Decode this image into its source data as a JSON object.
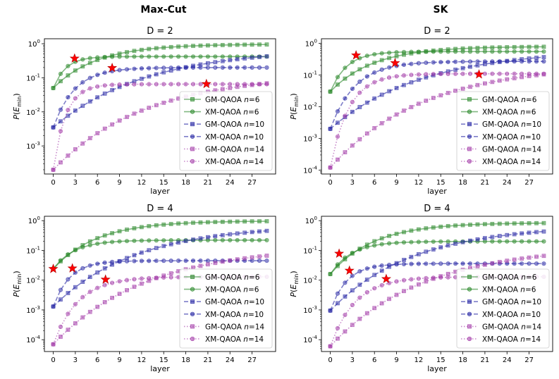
{
  "figure": {
    "column_titles": [
      "Max-Cut",
      "SK"
    ]
  },
  "styles": {
    "series": [
      {
        "name": "GM-QAOA n=6",
        "color": "#2e8b2e",
        "dash": "solid",
        "marker": "square"
      },
      {
        "name": "XM-QAOA n=6",
        "color": "#2e8b2e",
        "dash": "solid",
        "marker": "circle"
      },
      {
        "name": "GM-QAOA n=10",
        "color": "#2a2aa5",
        "dash": "dashed",
        "marker": "square"
      },
      {
        "name": "XM-QAOA n=10",
        "color": "#2a2aa5",
        "dash": "dashed",
        "marker": "circle"
      },
      {
        "name": "GM-QAOA n=14",
        "color": "#a33aa8",
        "dash": "dotted",
        "marker": "square"
      },
      {
        "name": "XM-QAOA n=14",
        "color": "#a33aa8",
        "dash": "dotted",
        "marker": "circle"
      }
    ],
    "star_color": "#ff0000"
  },
  "chart_data": [
    {
      "type": "line",
      "problem": "Max-Cut",
      "title": "D = 2",
      "xlabel": "layer",
      "ylabel": "P(E_min)",
      "yscale": "log",
      "ylim": [
        0.00015,
        1.4
      ],
      "xlim": [
        -1.2,
        30.2
      ],
      "xticks": [
        "0",
        "3",
        "6",
        "9",
        "12",
        "15",
        "18",
        "21",
        "24",
        "27"
      ],
      "yticks": [
        "10^-3",
        "10^-2",
        "10^-1",
        "10^0"
      ],
      "legend": "lower-right",
      "grid": false,
      "series": [
        {
          "name": "GM-QAOA n=6",
          "start": 0.05,
          "end": 0.97,
          "rate": 0.17
        },
        {
          "name": "XM-QAOA n=6",
          "start": 0.05,
          "end": 0.42,
          "rate": 0.6
        },
        {
          "name": "GM-QAOA n=10",
          "start": 0.0035,
          "end": 0.72,
          "rate": 0.08
        },
        {
          "name": "XM-QAOA n=10",
          "start": 0.0035,
          "end": 0.2,
          "rate": 0.35
        },
        {
          "name": "GM-QAOA n=14",
          "start": 0.0002,
          "end": 0.13,
          "rate": 0.08
        },
        {
          "name": "XM-QAOA n=14",
          "start": 0.0002,
          "end": 0.065,
          "rate": 0.6
        }
      ],
      "stars": [
        {
          "x": 2.9,
          "y": 0.37
        },
        {
          "x": 8.0,
          "y": 0.195
        },
        {
          "x": 20.8,
          "y": 0.066
        }
      ]
    },
    {
      "type": "line",
      "problem": "SK",
      "title": "D = 2",
      "xlabel": "layer",
      "ylabel": "P(E_min)",
      "yscale": "log",
      "ylim": [
        7.5e-05,
        1.4
      ],
      "xlim": [
        -1.2,
        30.2
      ],
      "xticks": [
        "0",
        "3",
        "6",
        "9",
        "12",
        "15",
        "18",
        "21",
        "24",
        "27"
      ],
      "yticks": [
        "10^-4",
        "10^-3",
        "10^-2",
        "10^-1",
        "10^0"
      ],
      "legend": "lower-right",
      "grid": false,
      "series": [
        {
          "name": "GM-QAOA n=6",
          "start": 0.03,
          "end": 0.8,
          "rate": 0.17
        },
        {
          "name": "XM-QAOA n=6",
          "start": 0.03,
          "end": 0.55,
          "rate": 0.45
        },
        {
          "name": "GM-QAOA n=10",
          "start": 0.002,
          "end": 0.65,
          "rate": 0.08
        },
        {
          "name": "XM-QAOA n=10",
          "start": 0.002,
          "end": 0.27,
          "rate": 0.3
        },
        {
          "name": "GM-QAOA n=14",
          "start": 0.00012,
          "end": 0.22,
          "rate": 0.08
        },
        {
          "name": "XM-QAOA n=14",
          "start": 0.00012,
          "end": 0.11,
          "rate": 0.4
        }
      ],
      "stars": [
        {
          "x": 3.5,
          "y": 0.42
        },
        {
          "x": 8.8,
          "y": 0.24
        },
        {
          "x": 20.2,
          "y": 0.105
        }
      ]
    },
    {
      "type": "line",
      "problem": "Max-Cut",
      "title": "D = 4",
      "xlabel": "layer",
      "ylabel": "P(E_min)",
      "yscale": "log",
      "ylim": [
        4e-05,
        1.4
      ],
      "xlim": [
        -1.2,
        30.2
      ],
      "xticks": [
        "0",
        "3",
        "6",
        "9",
        "12",
        "15",
        "18",
        "21",
        "24",
        "27"
      ],
      "yticks": [
        "10^-4",
        "10^-3",
        "10^-2",
        "10^-1",
        "10^0"
      ],
      "legend": "lower-right",
      "grid": false,
      "series": [
        {
          "name": "GM-QAOA n=6",
          "start": 0.024,
          "end": 0.98,
          "rate": 0.17
        },
        {
          "name": "XM-QAOA n=6",
          "start": 0.024,
          "end": 0.22,
          "rate": 0.35
        },
        {
          "name": "GM-QAOA n=10",
          "start": 0.0013,
          "end": 0.72,
          "rate": 0.09
        },
        {
          "name": "XM-QAOA n=10",
          "start": 0.0013,
          "end": 0.045,
          "rate": 0.45
        },
        {
          "name": "GM-QAOA n=14",
          "start": 7e-05,
          "end": 0.14,
          "rate": 0.08
        },
        {
          "name": "XM-QAOA n=14",
          "start": 7e-05,
          "end": 0.013,
          "rate": 0.3
        }
      ],
      "stars": [
        {
          "x": 0.0,
          "y": 0.024
        },
        {
          "x": 2.6,
          "y": 0.025
        },
        {
          "x": 7.1,
          "y": 0.0105
        }
      ]
    },
    {
      "type": "line",
      "problem": "SK",
      "title": "D = 4",
      "xlabel": "layer",
      "ylabel": "P(E_min)",
      "yscale": "log",
      "ylim": [
        4e-05,
        1.4
      ],
      "xlim": [
        -1.2,
        30.2
      ],
      "xticks": [
        "0",
        "3",
        "6",
        "9",
        "12",
        "15",
        "18",
        "21",
        "24",
        "27"
      ],
      "yticks": [
        "10^-4",
        "10^-3",
        "10^-2",
        "10^-1",
        "10^0"
      ],
      "legend": "lower-right",
      "grid": false,
      "series": [
        {
          "name": "GM-QAOA n=6",
          "start": 0.016,
          "end": 0.85,
          "rate": 0.17
        },
        {
          "name": "XM-QAOA n=6",
          "start": 0.016,
          "end": 0.2,
          "rate": 0.35
        },
        {
          "name": "GM-QAOA n=10",
          "start": 0.00095,
          "end": 0.7,
          "rate": 0.09
        },
        {
          "name": "XM-QAOA n=10",
          "start": 0.00095,
          "end": 0.036,
          "rate": 0.45
        },
        {
          "name": "GM-QAOA n=14",
          "start": 6e-05,
          "end": 0.14,
          "rate": 0.08
        },
        {
          "name": "XM-QAOA n=14",
          "start": 6e-05,
          "end": 0.013,
          "rate": 0.3
        }
      ],
      "stars": [
        {
          "x": 1.2,
          "y": 0.078
        },
        {
          "x": 2.6,
          "y": 0.021
        },
        {
          "x": 7.6,
          "y": 0.011
        }
      ]
    }
  ]
}
